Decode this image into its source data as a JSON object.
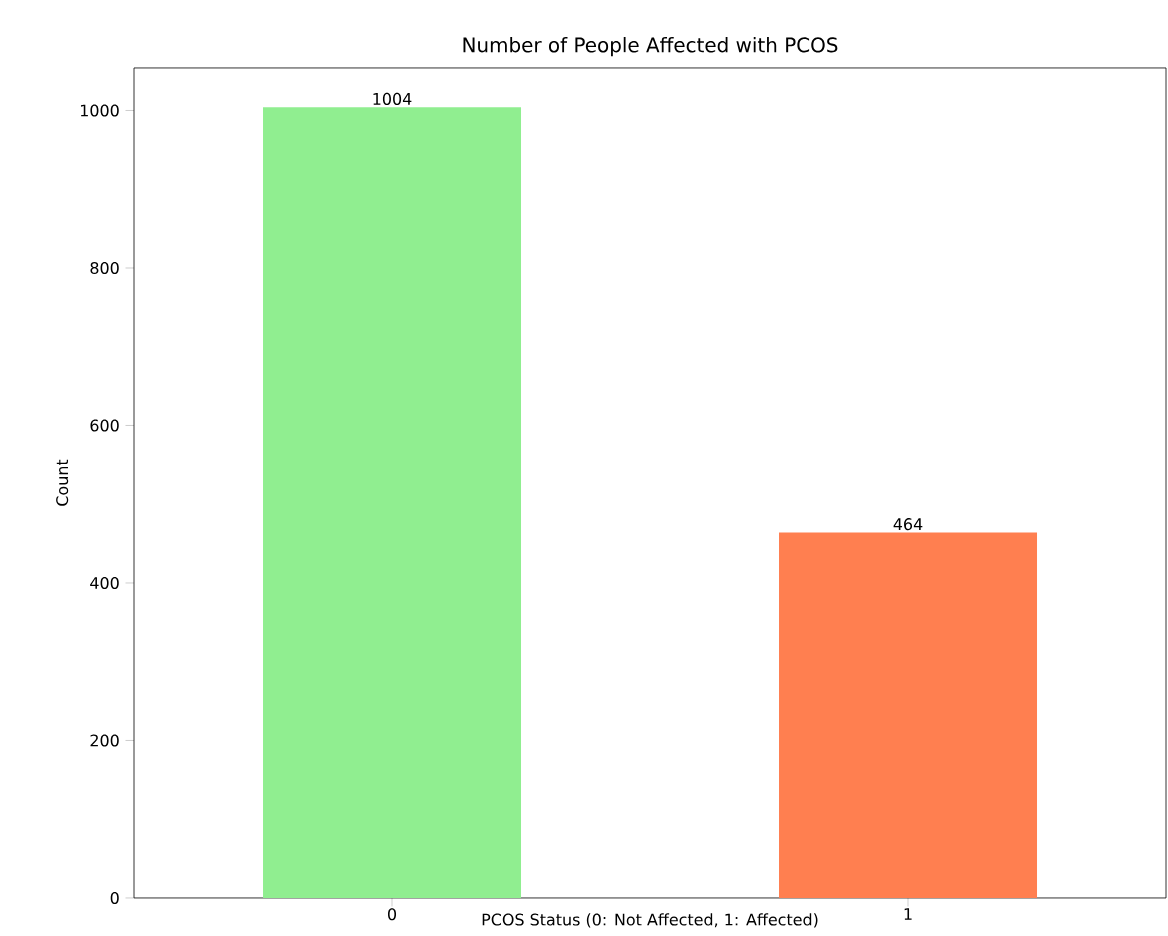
{
  "chart_data": {
    "type": "bar",
    "title": "Number of People Affected with PCOS",
    "xlabel": "PCOS Status (0: Not Affected, 1: Affected)",
    "ylabel": "Count",
    "categories": [
      "0",
      "1"
    ],
    "values": [
      1004,
      464
    ],
    "colors": [
      "#90ee90",
      "#ff7f50"
    ],
    "ylim": [
      0,
      1054
    ],
    "yticks": [
      0,
      200,
      400,
      600,
      800,
      1000
    ],
    "data_labels": true
  }
}
